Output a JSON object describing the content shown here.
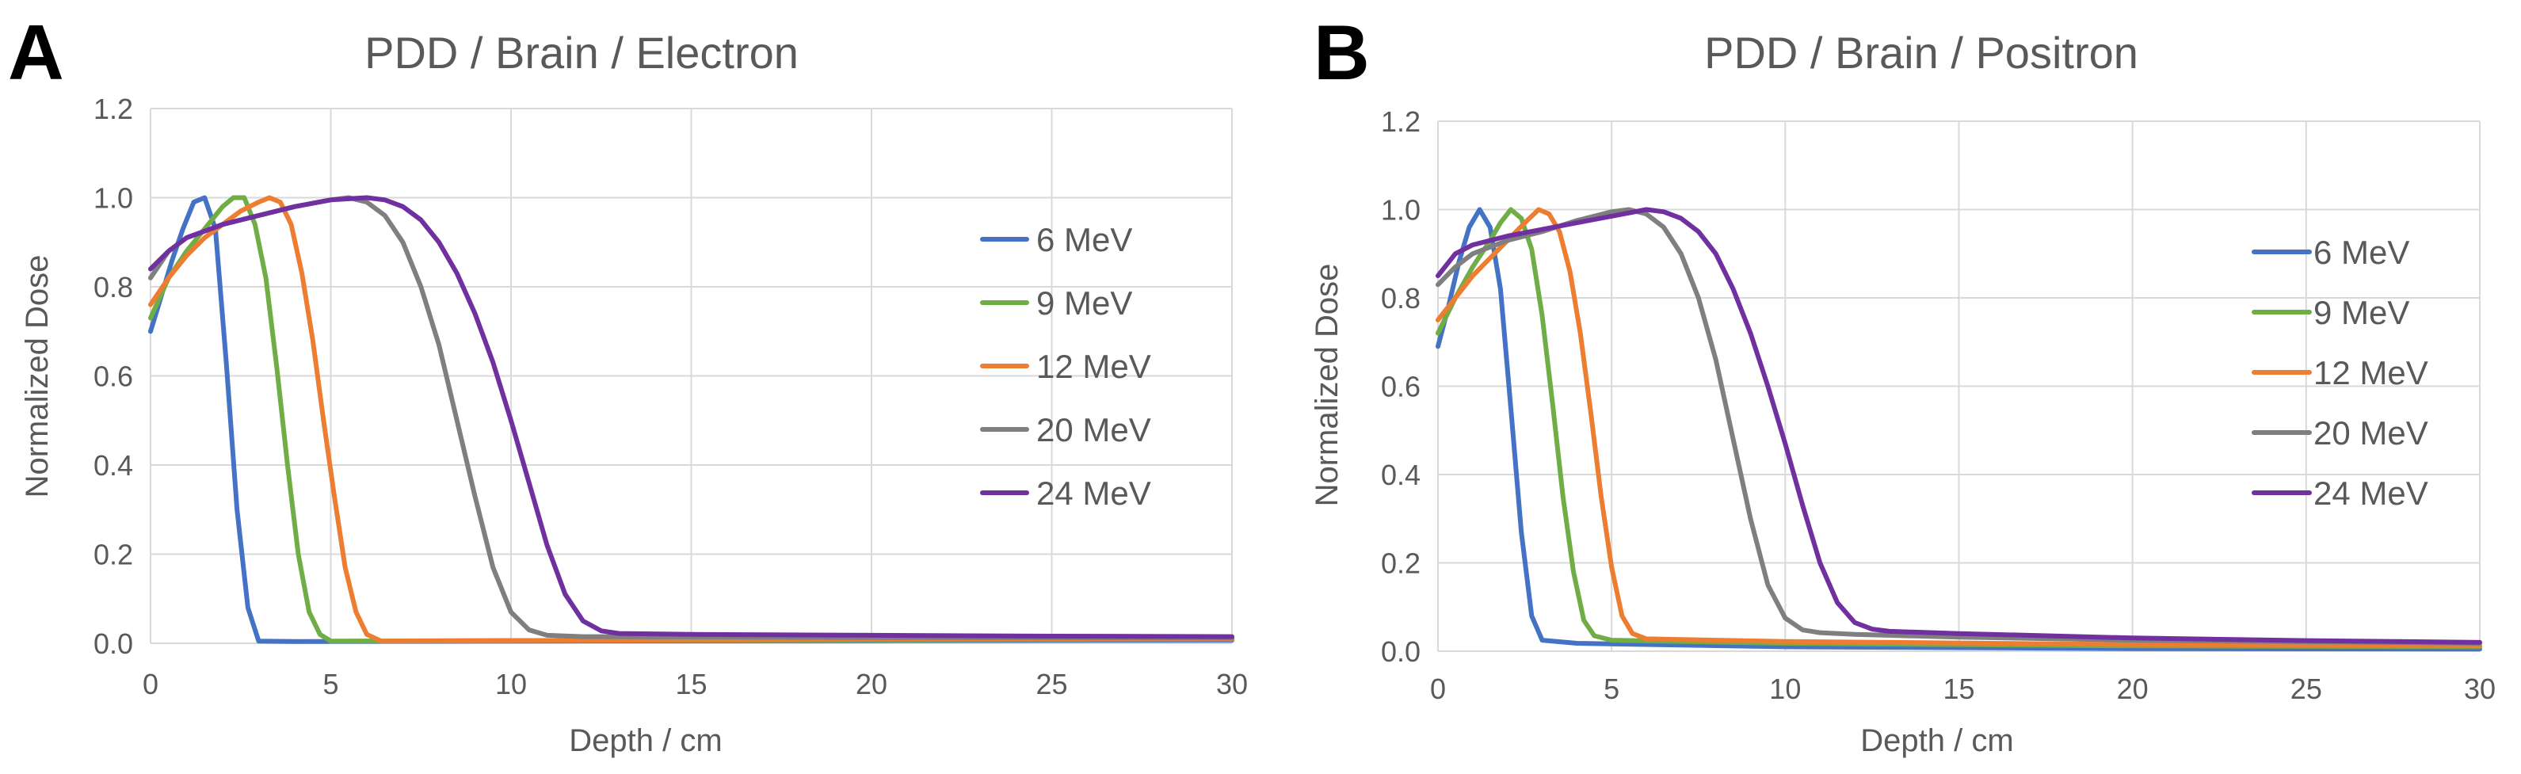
{
  "chart_data": [
    {
      "panel_label": "A",
      "type": "line",
      "title": "PDD / Brain / Electron",
      "xlabel": "Depth / cm",
      "ylabel": "Normalized Dose",
      "xlim": [
        0,
        30
      ],
      "ylim": [
        0,
        1.2
      ],
      "x_ticks": [
        "0",
        "5",
        "10",
        "15",
        "20",
        "25",
        "30"
      ],
      "y_ticks": [
        "0.0",
        "0.2",
        "0.4",
        "0.6",
        "0.8",
        "1.0",
        "1.2"
      ],
      "grid": true,
      "legend_position": "right",
      "series": [
        {
          "name": "6 MeV",
          "color": "#4472c4",
          "points": [
            [
              0,
              0.7
            ],
            [
              0.3,
              0.78
            ],
            [
              0.6,
              0.86
            ],
            [
              0.9,
              0.93
            ],
            [
              1.2,
              0.99
            ],
            [
              1.5,
              1.0
            ],
            [
              1.8,
              0.93
            ],
            [
              2.1,
              0.63
            ],
            [
              2.4,
              0.3
            ],
            [
              2.7,
              0.08
            ],
            [
              3.0,
              0.005
            ],
            [
              4,
              0.004
            ],
            [
              10,
              0.005
            ],
            [
              20,
              0.006
            ],
            [
              30,
              0.007
            ]
          ]
        },
        {
          "name": "9 MeV",
          "color": "#70ad47",
          "points": [
            [
              0,
              0.73
            ],
            [
              0.5,
              0.82
            ],
            [
              1.0,
              0.88
            ],
            [
              1.5,
              0.93
            ],
            [
              2.0,
              0.98
            ],
            [
              2.3,
              1.0
            ],
            [
              2.6,
              1.0
            ],
            [
              2.9,
              0.94
            ],
            [
              3.2,
              0.82
            ],
            [
              3.5,
              0.62
            ],
            [
              3.8,
              0.4
            ],
            [
              4.1,
              0.2
            ],
            [
              4.4,
              0.07
            ],
            [
              4.7,
              0.02
            ],
            [
              5.0,
              0.005
            ],
            [
              10,
              0.006
            ],
            [
              20,
              0.008
            ],
            [
              30,
              0.009
            ]
          ]
        },
        {
          "name": "12 MeV",
          "color": "#ed7d31",
          "points": [
            [
              0,
              0.76
            ],
            [
              0.5,
              0.82
            ],
            [
              1.0,
              0.87
            ],
            [
              1.5,
              0.91
            ],
            [
              2.0,
              0.94
            ],
            [
              2.5,
              0.97
            ],
            [
              3.0,
              0.99
            ],
            [
              3.3,
              1.0
            ],
            [
              3.6,
              0.99
            ],
            [
              3.9,
              0.94
            ],
            [
              4.2,
              0.83
            ],
            [
              4.5,
              0.68
            ],
            [
              4.8,
              0.5
            ],
            [
              5.1,
              0.33
            ],
            [
              5.4,
              0.17
            ],
            [
              5.7,
              0.07
            ],
            [
              6.0,
              0.02
            ],
            [
              6.4,
              0.005
            ],
            [
              10,
              0.006
            ],
            [
              20,
              0.009
            ],
            [
              30,
              0.01
            ]
          ]
        },
        {
          "name": "20 MeV",
          "color": "#7f7f7f",
          "points": [
            [
              0,
              0.82
            ],
            [
              0.5,
              0.88
            ],
            [
              1.0,
              0.91
            ],
            [
              2.0,
              0.94
            ],
            [
              3.0,
              0.96
            ],
            [
              4.0,
              0.98
            ],
            [
              5.0,
              0.995
            ],
            [
              5.5,
              1.0
            ],
            [
              6.0,
              0.99
            ],
            [
              6.5,
              0.96
            ],
            [
              7.0,
              0.9
            ],
            [
              7.5,
              0.8
            ],
            [
              8.0,
              0.67
            ],
            [
              8.5,
              0.5
            ],
            [
              9.0,
              0.33
            ],
            [
              9.5,
              0.17
            ],
            [
              10.0,
              0.07
            ],
            [
              10.5,
              0.03
            ],
            [
              11.0,
              0.018
            ],
            [
              12,
              0.015
            ],
            [
              20,
              0.013
            ],
            [
              30,
              0.012
            ]
          ]
        },
        {
          "name": "24 MeV",
          "color": "#7030a0",
          "points": [
            [
              0,
              0.84
            ],
            [
              0.5,
              0.88
            ],
            [
              1.0,
              0.91
            ],
            [
              2.0,
              0.94
            ],
            [
              3.0,
              0.96
            ],
            [
              4.0,
              0.98
            ],
            [
              5.0,
              0.995
            ],
            [
              6.0,
              1.0
            ],
            [
              6.5,
              0.995
            ],
            [
              7.0,
              0.98
            ],
            [
              7.5,
              0.95
            ],
            [
              8.0,
              0.9
            ],
            [
              8.5,
              0.83
            ],
            [
              9.0,
              0.74
            ],
            [
              9.5,
              0.63
            ],
            [
              10.0,
              0.5
            ],
            [
              10.5,
              0.36
            ],
            [
              11.0,
              0.22
            ],
            [
              11.5,
              0.11
            ],
            [
              12.0,
              0.05
            ],
            [
              12.5,
              0.028
            ],
            [
              13.0,
              0.022
            ],
            [
              15,
              0.02
            ],
            [
              20,
              0.018
            ],
            [
              25,
              0.016
            ],
            [
              30,
              0.015
            ]
          ]
        }
      ]
    },
    {
      "panel_label": "B",
      "type": "line",
      "title": "PDD / Brain / Positron",
      "xlabel": "Depth / cm",
      "ylabel": "Normalized Dose",
      "xlim": [
        0,
        30
      ],
      "ylim": [
        0,
        1.2
      ],
      "x_ticks": [
        "0",
        "5",
        "10",
        "15",
        "20",
        "25",
        "30"
      ],
      "y_ticks": [
        "0.0",
        "0.2",
        "0.4",
        "0.6",
        "0.8",
        "1.0",
        "1.2"
      ],
      "grid": true,
      "legend_position": "right",
      "series": [
        {
          "name": "6 MeV",
          "color": "#4472c4",
          "points": [
            [
              0,
              0.69
            ],
            [
              0.3,
              0.78
            ],
            [
              0.6,
              0.88
            ],
            [
              0.9,
              0.96
            ],
            [
              1.2,
              1.0
            ],
            [
              1.5,
              0.96
            ],
            [
              1.8,
              0.82
            ],
            [
              2.1,
              0.55
            ],
            [
              2.4,
              0.27
            ],
            [
              2.7,
              0.08
            ],
            [
              3.0,
              0.025
            ],
            [
              4,
              0.018
            ],
            [
              10,
              0.01
            ],
            [
              20,
              0.006
            ],
            [
              30,
              0.005
            ]
          ]
        },
        {
          "name": "9 MeV",
          "color": "#70ad47",
          "points": [
            [
              0,
              0.72
            ],
            [
              0.5,
              0.8
            ],
            [
              1.0,
              0.87
            ],
            [
              1.5,
              0.93
            ],
            [
              1.8,
              0.97
            ],
            [
              2.1,
              1.0
            ],
            [
              2.4,
              0.98
            ],
            [
              2.7,
              0.91
            ],
            [
              3.0,
              0.76
            ],
            [
              3.3,
              0.56
            ],
            [
              3.6,
              0.35
            ],
            [
              3.9,
              0.18
            ],
            [
              4.2,
              0.07
            ],
            [
              4.5,
              0.035
            ],
            [
              5.0,
              0.025
            ],
            [
              10,
              0.018
            ],
            [
              20,
              0.012
            ],
            [
              30,
              0.01
            ]
          ]
        },
        {
          "name": "12 MeV",
          "color": "#ed7d31",
          "points": [
            [
              0,
              0.75
            ],
            [
              0.5,
              0.8
            ],
            [
              1.0,
              0.85
            ],
            [
              1.5,
              0.89
            ],
            [
              2.0,
              0.93
            ],
            [
              2.5,
              0.97
            ],
            [
              2.9,
              1.0
            ],
            [
              3.2,
              0.99
            ],
            [
              3.5,
              0.95
            ],
            [
              3.8,
              0.86
            ],
            [
              4.1,
              0.72
            ],
            [
              4.4,
              0.54
            ],
            [
              4.7,
              0.35
            ],
            [
              5.0,
              0.19
            ],
            [
              5.3,
              0.08
            ],
            [
              5.6,
              0.04
            ],
            [
              6.0,
              0.028
            ],
            [
              8,
              0.025
            ],
            [
              10,
              0.022
            ],
            [
              20,
              0.015
            ],
            [
              30,
              0.012
            ]
          ]
        },
        {
          "name": "20 MeV",
          "color": "#7f7f7f",
          "points": [
            [
              0,
              0.83
            ],
            [
              0.5,
              0.87
            ],
            [
              1.0,
              0.9
            ],
            [
              2.0,
              0.93
            ],
            [
              3.0,
              0.95
            ],
            [
              4.0,
              0.975
            ],
            [
              5.0,
              0.995
            ],
            [
              5.5,
              1.0
            ],
            [
              6.0,
              0.99
            ],
            [
              6.5,
              0.96
            ],
            [
              7.0,
              0.9
            ],
            [
              7.5,
              0.8
            ],
            [
              8.0,
              0.66
            ],
            [
              8.5,
              0.48
            ],
            [
              9.0,
              0.3
            ],
            [
              9.5,
              0.15
            ],
            [
              10.0,
              0.075
            ],
            [
              10.5,
              0.048
            ],
            [
              11.0,
              0.042
            ],
            [
              12,
              0.038
            ],
            [
              15,
              0.032
            ],
            [
              20,
              0.025
            ],
            [
              30,
              0.018
            ]
          ]
        },
        {
          "name": "24 MeV",
          "color": "#7030a0",
          "points": [
            [
              0,
              0.85
            ],
            [
              0.5,
              0.9
            ],
            [
              1.0,
              0.92
            ],
            [
              2.0,
              0.94
            ],
            [
              3.0,
              0.955
            ],
            [
              4.0,
              0.97
            ],
            [
              5.0,
              0.985
            ],
            [
              6.0,
              1.0
            ],
            [
              6.5,
              0.995
            ],
            [
              7.0,
              0.98
            ],
            [
              7.5,
              0.95
            ],
            [
              8.0,
              0.9
            ],
            [
              8.5,
              0.82
            ],
            [
              9.0,
              0.72
            ],
            [
              9.5,
              0.6
            ],
            [
              10.0,
              0.47
            ],
            [
              10.5,
              0.33
            ],
            [
              11.0,
              0.2
            ],
            [
              11.5,
              0.11
            ],
            [
              12.0,
              0.065
            ],
            [
              12.5,
              0.05
            ],
            [
              13.0,
              0.045
            ],
            [
              15,
              0.04
            ],
            [
              20,
              0.03
            ],
            [
              25,
              0.024
            ],
            [
              30,
              0.02
            ]
          ]
        }
      ]
    }
  ]
}
